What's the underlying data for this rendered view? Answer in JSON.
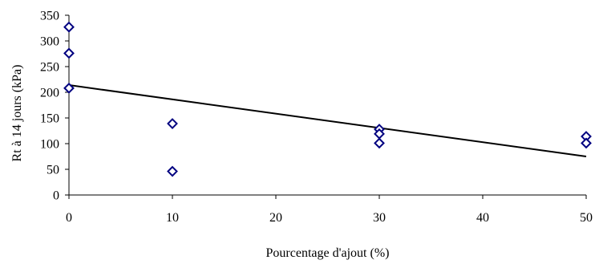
{
  "chart_data": {
    "type": "scatter",
    "xlabel": "Pourcentage d'ajout (%)",
    "ylabel": "Rt à 14 jours (kPa)",
    "xlim": [
      0,
      50
    ],
    "ylim": [
      0,
      350
    ],
    "x_ticks": [
      0,
      10,
      20,
      30,
      40,
      50
    ],
    "y_ticks": [
      0,
      50,
      100,
      150,
      200,
      250,
      300,
      350
    ],
    "x_tick_labels": [
      "0",
      "10",
      "20",
      "30",
      "40",
      "50"
    ],
    "y_tick_labels": [
      "0",
      "50",
      "100",
      "150",
      "200",
      "250",
      "300",
      "350"
    ],
    "grid": false,
    "legend": "none",
    "series": [
      {
        "marker": "diamond-open",
        "color": "#000080",
        "points": [
          {
            "x": 0,
            "y": 327
          },
          {
            "x": 0,
            "y": 276
          },
          {
            "x": 0,
            "y": 208
          },
          {
            "x": 10,
            "y": 139
          },
          {
            "x": 10,
            "y": 46
          },
          {
            "x": 30,
            "y": 128
          },
          {
            "x": 30,
            "y": 119
          },
          {
            "x": 30,
            "y": 101
          },
          {
            "x": 50,
            "y": 114
          },
          {
            "x": 50,
            "y": 101
          }
        ]
      }
    ],
    "trendline": {
      "type": "linear",
      "color": "#000000",
      "from": {
        "x": 0,
        "y": 214
      },
      "to": {
        "x": 50,
        "y": 75
      }
    }
  }
}
